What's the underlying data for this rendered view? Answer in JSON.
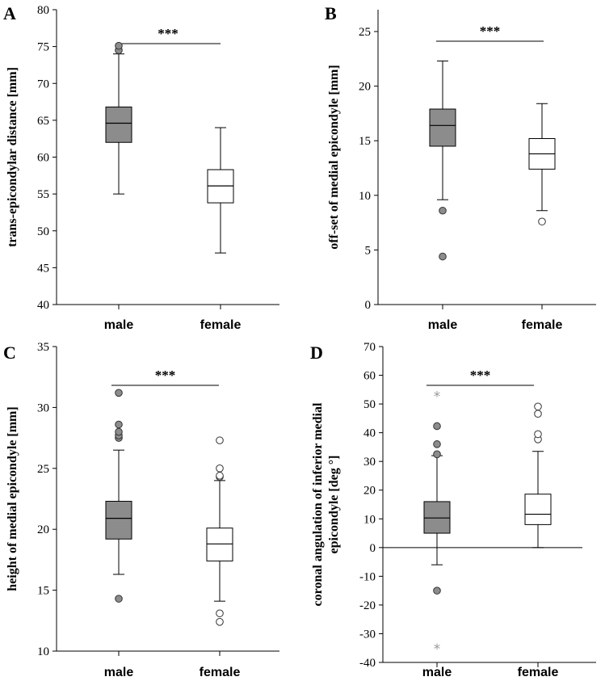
{
  "chart_data": [
    {
      "panel": "A",
      "type": "box",
      "ylabel": "trans-epicondylar distance [mm]",
      "ylim": [
        40,
        80
      ],
      "yticks": [
        40,
        45,
        50,
        55,
        60,
        65,
        70,
        75,
        80
      ],
      "categories": [
        "male",
        "female"
      ],
      "significance": "***",
      "baseline": null,
      "series": [
        {
          "name": "male",
          "fill": "#8c8c8c",
          "whisker_low": 55,
          "q1": 62,
          "median": 64.6,
          "q3": 66.8,
          "whisker_high": 74,
          "outliers": [
            74.5,
            75.1
          ],
          "extremes": []
        },
        {
          "name": "female",
          "fill": "#ffffff",
          "whisker_low": 47,
          "q1": 53.8,
          "median": 56.1,
          "q3": 58.3,
          "whisker_high": 64,
          "outliers": [],
          "extremes": []
        }
      ]
    },
    {
      "panel": "B",
      "type": "box",
      "ylabel": "off-set of medial epicondyle [mm]",
      "ylim": [
        0,
        27
      ],
      "yticks": [
        0,
        5,
        10,
        15,
        20,
        25
      ],
      "categories": [
        "male",
        "female"
      ],
      "significance": "***",
      "baseline": null,
      "series": [
        {
          "name": "male",
          "fill": "#8c8c8c",
          "whisker_low": 9.6,
          "q1": 14.5,
          "median": 16.4,
          "q3": 17.9,
          "whisker_high": 22.3,
          "outliers": [
            8.6,
            4.4
          ],
          "extremes": []
        },
        {
          "name": "female",
          "fill": "#ffffff",
          "whisker_low": 8.6,
          "q1": 12.4,
          "median": 13.8,
          "q3": 15.2,
          "whisker_high": 18.4,
          "outliers": [
            7.6
          ],
          "extremes": []
        }
      ]
    },
    {
      "panel": "C",
      "type": "box",
      "ylabel": "height of medial epicondyle [mm]",
      "ylim": [
        10,
        35
      ],
      "yticks": [
        10,
        15,
        20,
        25,
        30,
        35
      ],
      "categories": [
        "male",
        "female"
      ],
      "significance": "***",
      "baseline": null,
      "series": [
        {
          "name": "male",
          "fill": "#8c8c8c",
          "whisker_low": 16.3,
          "q1": 19.2,
          "median": 20.9,
          "q3": 22.3,
          "whisker_high": 26.5,
          "outliers": [
            27.5,
            27.7,
            28.0,
            28.6,
            31.2,
            14.3
          ],
          "extremes": []
        },
        {
          "name": "female",
          "fill": "#ffffff",
          "whisker_low": 14.1,
          "q1": 17.4,
          "median": 18.8,
          "q3": 20.1,
          "whisker_high": 24.0,
          "outliers": [
            24.3,
            24.4,
            25.0,
            27.3,
            13.1,
            12.4
          ],
          "extremes": []
        }
      ]
    },
    {
      "panel": "D",
      "type": "box",
      "ylabel": "coronal angulation of inferior medial epicondyle [deg °]",
      "ylabel_lines": [
        "coronal angulation of inferior medial",
        "epicondyle [deg °]"
      ],
      "ylim": [
        -40,
        70
      ],
      "yticks": [
        -40,
        -30,
        -20,
        -10,
        0,
        10,
        20,
        30,
        40,
        50,
        60,
        70
      ],
      "categories": [
        "male",
        "female"
      ],
      "significance": "***",
      "baseline": 0,
      "series": [
        {
          "name": "male",
          "fill": "#8c8c8c",
          "whisker_low": -6,
          "q1": 5,
          "median": 10.3,
          "q3": 16,
          "whisker_high": 32,
          "outliers": [
            32.5,
            36,
            42.3,
            -15
          ],
          "extremes": [
            53,
            -35
          ]
        },
        {
          "name": "female",
          "fill": "#ffffff",
          "whisker_low": 0,
          "q1": 8,
          "median": 11.6,
          "q3": 18.6,
          "whisker_high": 33.5,
          "outliers": [
            37.7,
            39.5,
            46.6,
            49.1
          ],
          "extremes": []
        }
      ]
    }
  ]
}
